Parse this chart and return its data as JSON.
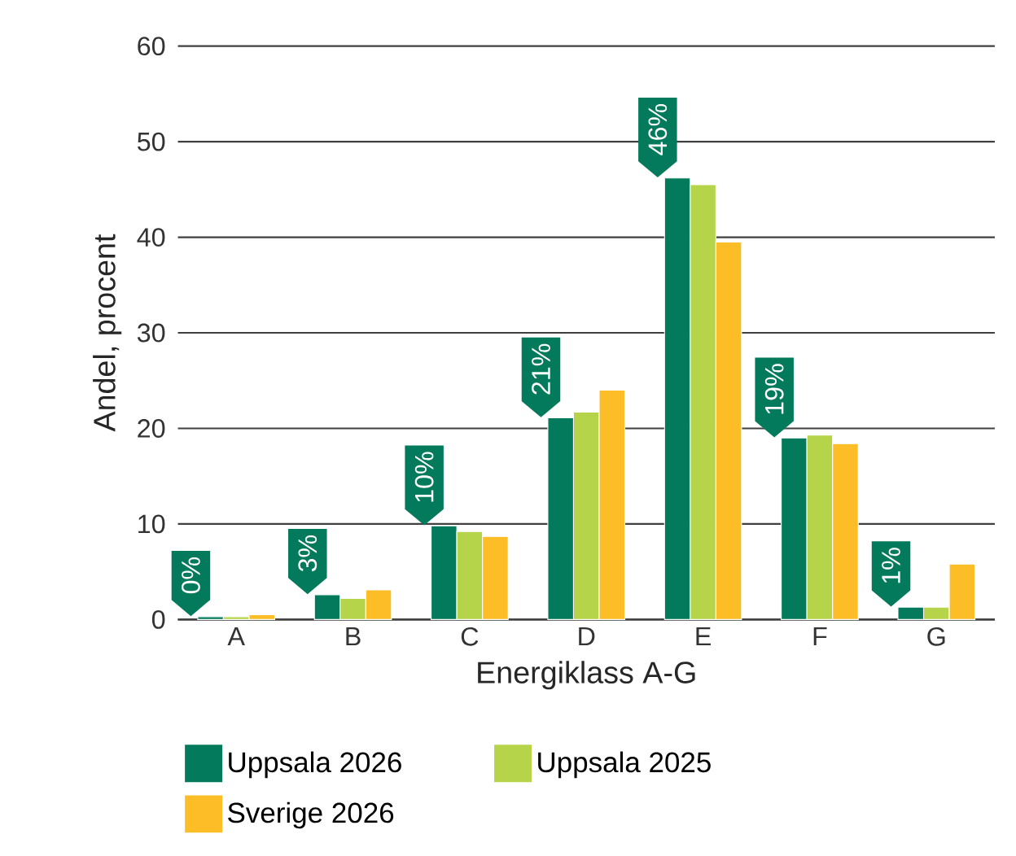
{
  "chart_data": {
    "type": "bar",
    "xlabel": "Energiklass A-G",
    "ylabel": "Andel, procent",
    "categories": [
      "A",
      "B",
      "C",
      "D",
      "E",
      "F",
      "G"
    ],
    "series": [
      {
        "name": "Uppsala 2026",
        "color": "#037a5b",
        "values": [
          0.3,
          2.6,
          9.8,
          21.1,
          46.2,
          19.0,
          1.3
        ],
        "value_labels": [
          "0%",
          "3%",
          "10%",
          "21%",
          "46%",
          "19%",
          "1%"
        ]
      },
      {
        "name": "Uppsala 2025",
        "color": "#b5d44a",
        "values": [
          0.3,
          2.2,
          9.2,
          21.7,
          45.5,
          19.3,
          1.3
        ]
      },
      {
        "name": "Sverige 2026",
        "color": "#fdbd27",
        "values": [
          0.5,
          3.1,
          8.7,
          24.0,
          39.5,
          18.4,
          5.8
        ]
      }
    ],
    "ylim": [
      0,
      60
    ],
    "yticks": [
      0,
      10,
      20,
      30,
      40,
      50,
      60
    ],
    "grid": "y",
    "legend": "bottom"
  }
}
